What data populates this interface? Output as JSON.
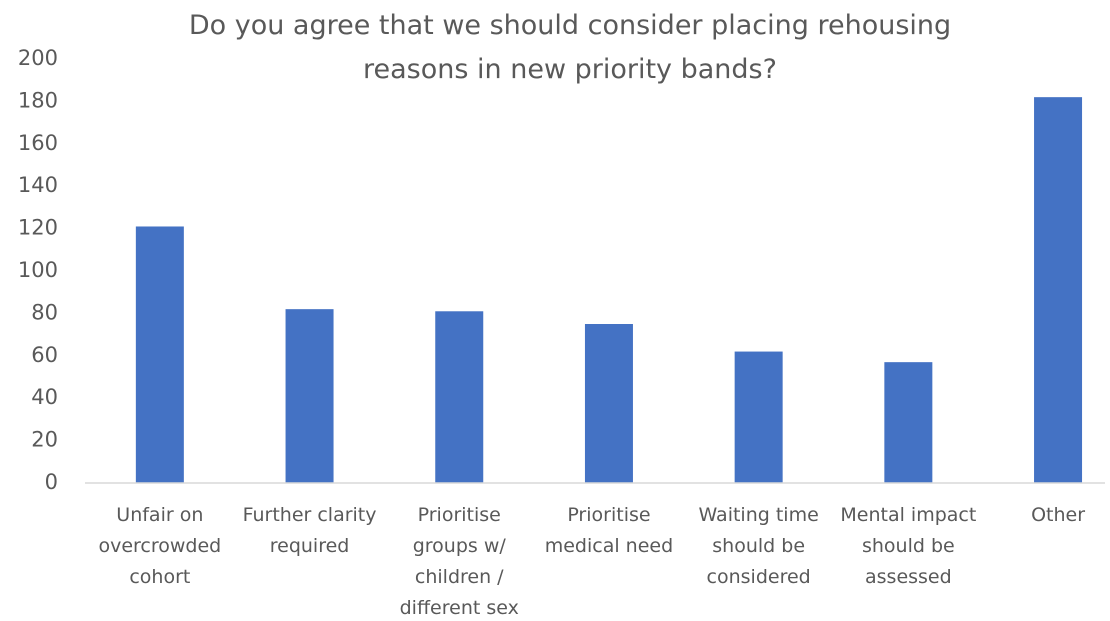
{
  "chart_data": {
    "type": "bar",
    "title": "Do you agree that we should consider placing rehousing reasons in new priority bands?",
    "categories": [
      "Unfair on overcrowded cohort",
      "Further clarity required",
      "Prioritise groups w/ children / different sex",
      "Prioritise medical need",
      "Waiting time should be considered",
      "Mental impact should be assessed",
      "Other"
    ],
    "values": [
      121,
      82,
      81,
      75,
      62,
      57,
      182
    ],
    "color": "#4472c4",
    "ylim": [
      0,
      200
    ],
    "yticks": [
      0,
      20,
      40,
      60,
      80,
      100,
      120,
      140,
      160,
      180,
      200
    ],
    "grid": false
  }
}
